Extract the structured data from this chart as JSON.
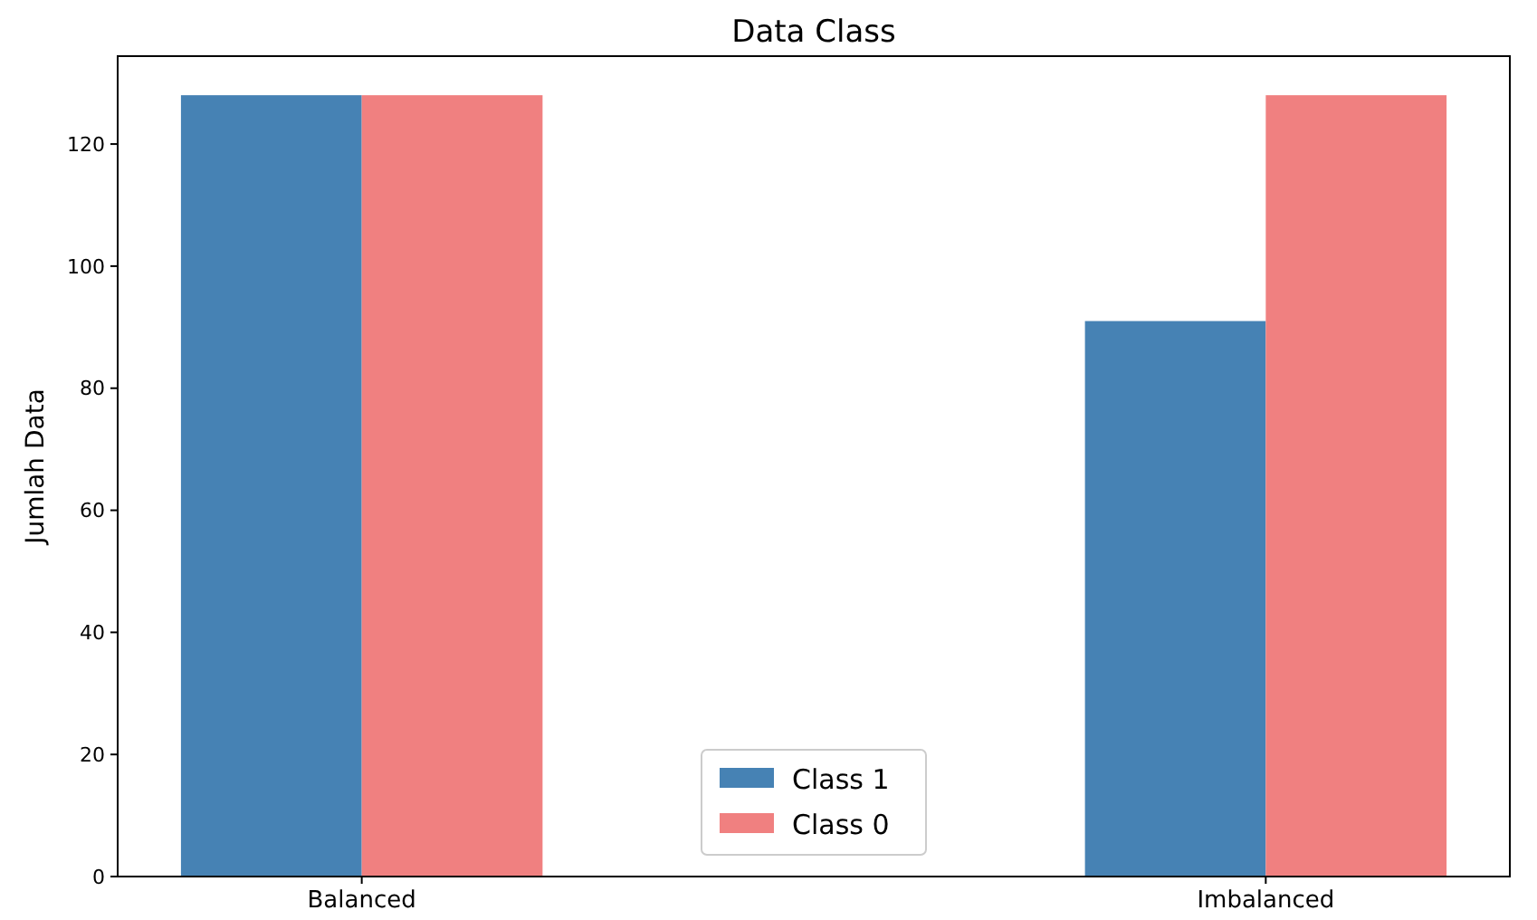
{
  "chart_data": {
    "type": "bar",
    "title": "Data Class",
    "ylabel": "Jumlah Data",
    "categories": [
      "Balanced",
      "Imbalanced"
    ],
    "series": [
      {
        "name": "Class 1",
        "color": "#4682b4",
        "values": [
          128,
          91
        ]
      },
      {
        "name": "Class 0",
        "color": "#f08080",
        "values": [
          128,
          128
        ]
      }
    ],
    "ylim": [
      0,
      134.4
    ],
    "yticks": [
      0,
      20,
      40,
      60,
      80,
      100,
      120
    ],
    "legend": "bottom",
    "grid": false
  }
}
